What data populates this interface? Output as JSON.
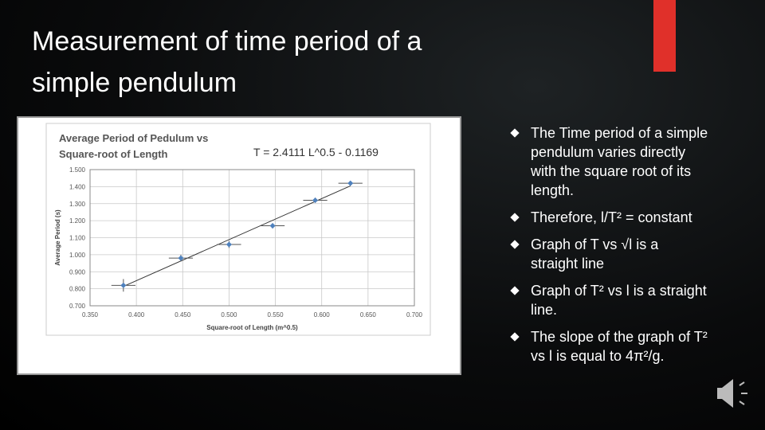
{
  "slide_title": [
    "Measurement of time period of a",
    "simple pendulum"
  ],
  "bullets": [
    "The Time period of a simple pendulum varies directly with the square root of its length.",
    "Therefore, l/T² = constant",
    "Graph of T vs √l is a straight line",
    "Graph of T² vs l is a straight line.",
    "The slope of the graph of T² vs l is equal to 4π²/g."
  ],
  "chart_data": {
    "type": "scatter",
    "title_lines": [
      "Average Period of Pedulum vs",
      "Square-root of Length"
    ],
    "annotation": "T = 2.4111 L^0.5 - 0.1169",
    "fit": {
      "slope": 2.4111,
      "intercept": -0.1169
    },
    "x_label": "Square-root of Length (m^0.5)",
    "y_label": "Average Period (s)",
    "x": [
      0.386,
      0.448,
      0.5,
      0.547,
      0.593,
      0.631
    ],
    "values": [
      0.82,
      0.98,
      1.06,
      1.17,
      1.32,
      1.42
    ],
    "x_err": [
      0.013,
      0.013,
      0.013,
      0.013,
      0.013,
      0.013
    ],
    "y_err": [
      0.037,
      0.02,
      0.02,
      0.015,
      0.015,
      0.01
    ],
    "color": "#4f81bd",
    "xlim": [
      0.35,
      0.7
    ],
    "xticks": [
      {
        "value": 0.35,
        "label": "0.350"
      },
      {
        "value": 0.4,
        "label": "0.400"
      },
      {
        "value": 0.45,
        "label": "0.450"
      },
      {
        "value": 0.5,
        "label": "0.500"
      },
      {
        "value": 0.55,
        "label": "0.550"
      },
      {
        "value": 0.6,
        "label": "0.600"
      },
      {
        "value": 0.65,
        "label": "0.650"
      },
      {
        "value": 0.7,
        "label": "0.700"
      }
    ],
    "ylim": [
      0.7,
      1.5
    ],
    "yticks": [
      {
        "value": 0.7,
        "label": "0.700"
      },
      {
        "value": 0.8,
        "label": "0.800"
      },
      {
        "value": 0.9,
        "label": "0.900"
      },
      {
        "value": 1.0,
        "label": "1.000"
      },
      {
        "value": 1.1,
        "label": "1.100"
      },
      {
        "value": 1.2,
        "label": "1.200"
      },
      {
        "value": 1.3,
        "label": "1.300"
      },
      {
        "value": 1.4,
        "label": "1.400"
      },
      {
        "value": 1.5,
        "label": "1.500"
      }
    ],
    "grid": true
  }
}
